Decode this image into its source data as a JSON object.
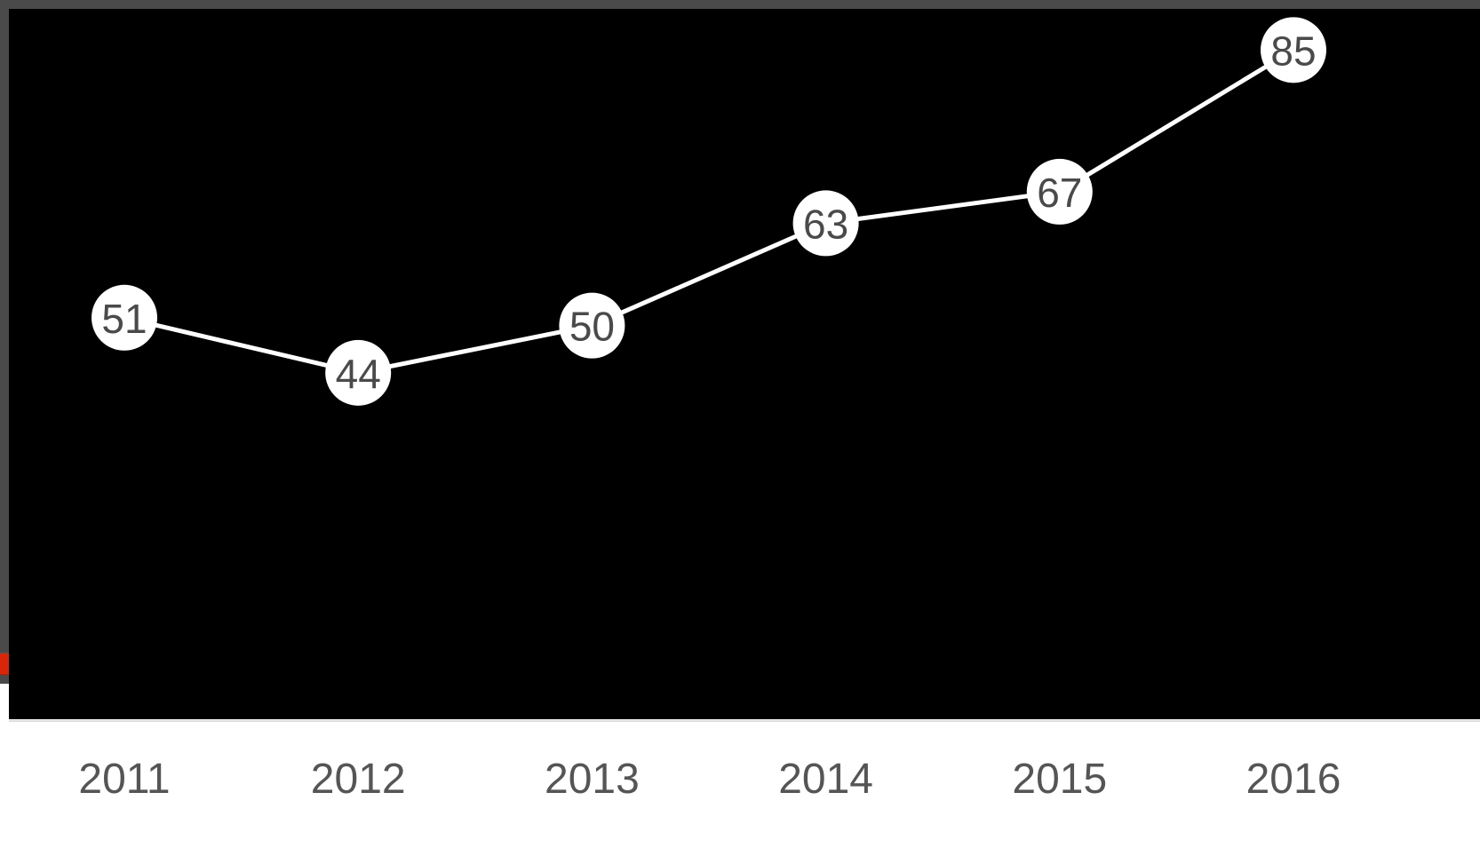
{
  "colors": {
    "frame": "#4a4a4a",
    "plot_background": "#000000",
    "gridline": "#bdbdbd",
    "line": "#ffffff",
    "marker_fill": "#ffffff",
    "marker_text": "#4a4a4a",
    "tick_label": "#555555",
    "accent": "#d9260b"
  },
  "chart_data": {
    "type": "line",
    "categories": [
      "2011",
      "2012",
      "2013",
      "2014",
      "2015",
      "2016"
    ],
    "series": [
      {
        "values": [
          51,
          44,
          50,
          63,
          67,
          85
        ],
        "data_labels": [
          "51",
          "44",
          "50",
          "63",
          "67",
          "85"
        ]
      }
    ],
    "ylim": [
      0,
      90
    ],
    "grid": true,
    "legend": "none",
    "title": "",
    "xlabel": "",
    "ylabel": ""
  }
}
